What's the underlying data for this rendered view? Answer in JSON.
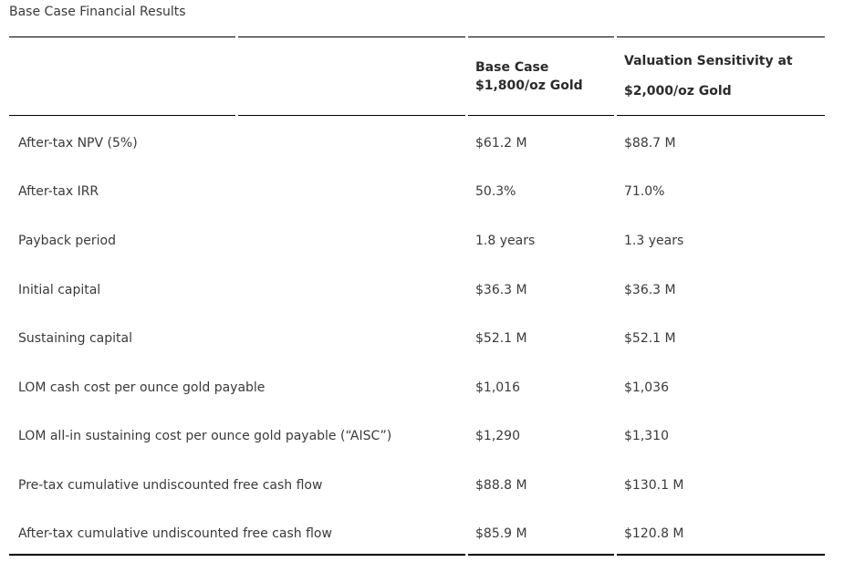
{
  "page": {
    "title": "Base Case Financial Results"
  },
  "table": {
    "header": {
      "base_case": [
        "Base Case",
        "$1,800/oz Gold"
      ],
      "sensitivity": [
        "Valuation Sensitivity at",
        "$2,000/oz Gold"
      ]
    },
    "rows": [
      {
        "label": "After-tax NPV (5%)",
        "base_case": "$61.2 M",
        "sensitivity": "$88.7 M"
      },
      {
        "label": "After-tax IRR",
        "base_case": "50.3%",
        "sensitivity": "71.0%"
      },
      {
        "label": "Payback period",
        "base_case": "1.8 years",
        "sensitivity": "1.3 years"
      },
      {
        "label": "Initial capital",
        "base_case": "$36.3 M",
        "sensitivity": "$36.3 M"
      },
      {
        "label": "Sustaining capital",
        "base_case": "$52.1 M",
        "sensitivity": "$52.1 M"
      },
      {
        "label": "LOM cash cost per ounce gold payable",
        "base_case": "$1,016",
        "sensitivity": "$1,036"
      },
      {
        "label": "LOM all-in sustaining cost per ounce gold payable (“AISC”)",
        "base_case": "$1,290",
        "sensitivity": "$1,310"
      },
      {
        "label": "Pre-tax cumulative undiscounted free cash flow",
        "base_case": "$88.8 M",
        "sensitivity": "$130.1 M"
      },
      {
        "label": "After-tax cumulative undiscounted free cash flow",
        "base_case": "$85.9 M",
        "sensitivity": "$120.8 M"
      }
    ],
    "colors": {
      "border": "#000000",
      "text": "#3a3a3a",
      "header_text": "#2b2b2b",
      "background": "#ffffff"
    }
  }
}
